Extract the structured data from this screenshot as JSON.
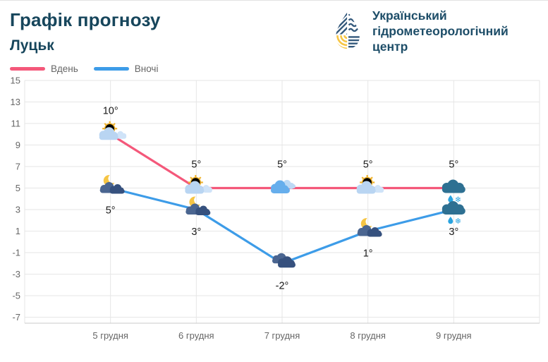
{
  "header": {
    "title": "Графік прогнозу",
    "city": "Луцьк"
  },
  "logo": {
    "lines": [
      "Український",
      "гідрометеорологічний",
      "центр"
    ]
  },
  "legend": [
    {
      "label": "Вдень",
      "color": "#f4587a"
    },
    {
      "label": "Вночі",
      "color": "#3d9ce8"
    }
  ],
  "chart_data": {
    "type": "line",
    "categories": [
      "5 грудня",
      "6 грудня",
      "7 грудня",
      "8 грудня",
      "9 грудня"
    ],
    "series": [
      {
        "name": "Вдень",
        "color": "#f4587a",
        "values": [
          10,
          5,
          5,
          5,
          5
        ],
        "labels": [
          "10°",
          "5°",
          "5°",
          "5°",
          "5°"
        ],
        "label_position": "above",
        "icons": [
          "sun-cloud",
          "sun-cloud",
          "clouds-day",
          "sun-cloud",
          "sleet"
        ]
      },
      {
        "name": "Вночі",
        "color": "#3d9ce8",
        "values": [
          5,
          3,
          -2,
          1,
          3
        ],
        "labels": [
          "5°",
          "3°",
          "-2°",
          "1°",
          "3°"
        ],
        "label_position": "below",
        "icons": [
          "moon-cloud",
          "moon-cloud",
          "dark-cloud",
          "moon-cloud",
          "sleet"
        ]
      }
    ],
    "ylim": [
      -7,
      15
    ],
    "yticks": [
      15,
      13,
      11,
      9,
      7,
      5,
      3,
      1,
      -1,
      -3,
      -5,
      -7
    ],
    "grid": true,
    "legend_position": "top-left"
  }
}
